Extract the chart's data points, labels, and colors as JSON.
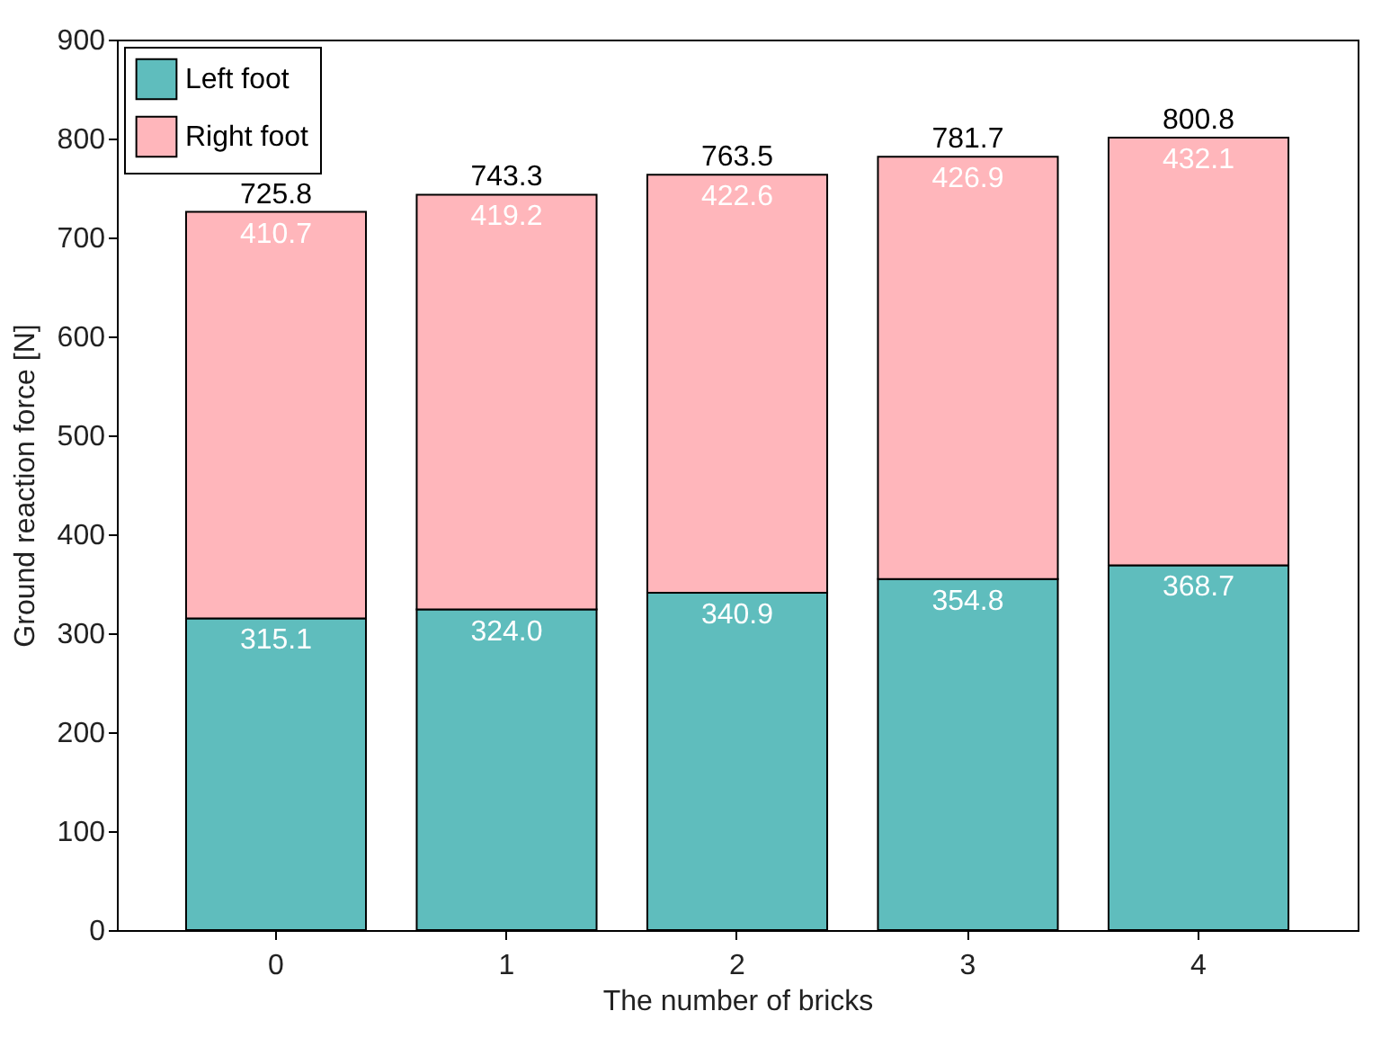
{
  "chart_data": {
    "type": "bar",
    "stacked": true,
    "xlabel": "The number of bricks",
    "ylabel": "Ground reaction force [N]",
    "categories": [
      "0",
      "1",
      "2",
      "3",
      "4"
    ],
    "series": [
      {
        "name": "Left foot",
        "color": "#5fbdbd",
        "values": [
          315.1,
          324.0,
          340.9,
          354.8,
          368.7
        ],
        "value_labels": [
          "315.1",
          "324.0",
          "340.9",
          "354.8",
          "368.7"
        ]
      },
      {
        "name": "Right foot",
        "color": "#ffb6bb",
        "values": [
          410.7,
          419.2,
          422.6,
          426.9,
          432.1
        ],
        "value_labels": [
          "410.7",
          "419.2",
          "422.6",
          "426.9",
          "432.1"
        ]
      }
    ],
    "totals": [
      "725.8",
      "743.3",
      "763.5",
      "781.7",
      "800.8"
    ],
    "ylim": [
      0,
      900
    ],
    "yticks": [
      0,
      100,
      200,
      300,
      400,
      500,
      600,
      700,
      800,
      900
    ],
    "legend": "top left",
    "grid": false
  }
}
